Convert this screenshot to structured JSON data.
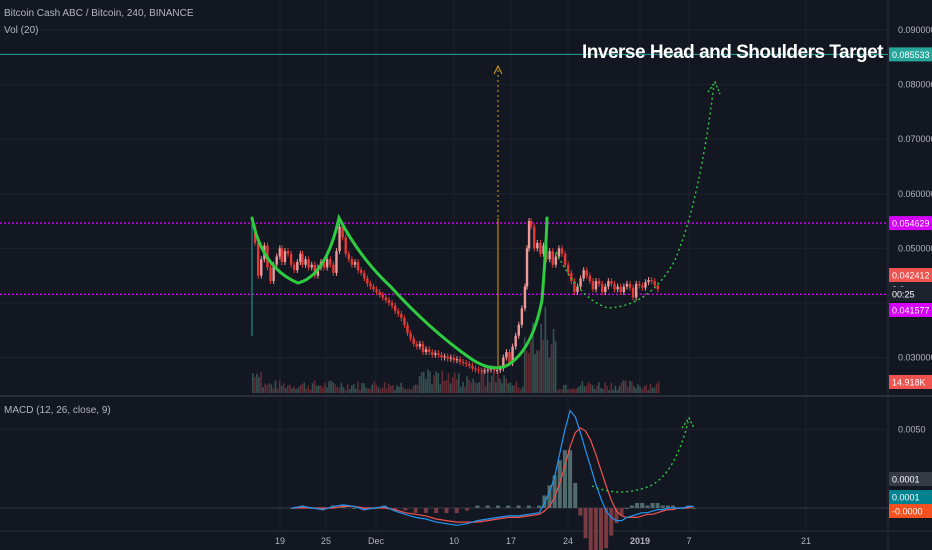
{
  "header": {
    "symbol": "Bitcoin Cash ABC / Bitcoin, 240, BINANCE",
    "volume": "Vol (20)",
    "macd": "MACD (12, 26, close, 9)"
  },
  "annotation": {
    "title": "Inverse Head and Shoulders Target"
  },
  "colors": {
    "background": "#131722",
    "grid": "#1e222d",
    "up": "#ef9a9a",
    "down": "#e53935",
    "pattern": "#2ecc40",
    "projection": "#2ecc40",
    "level": "#d500f9",
    "target": "#26a69a",
    "macd": "#2196f3",
    "signal": "#ef5350"
  },
  "chart_data": [
    {
      "type": "line",
      "name": "price",
      "xaxis": {
        "labels": [
          "19",
          "25",
          "Dec",
          "10",
          "17",
          "24",
          "2019",
          "7",
          "21"
        ]
      },
      "yaxis": {
        "range": [
          0.0235,
          0.0955
        ],
        "ticks": [
          "0.090000",
          "0.080000",
          "0.070000",
          "0.060000",
          "0.050000",
          "0.030000"
        ]
      },
      "price_labels": {
        "target": "0.085533",
        "resistance": "0.054629",
        "current": "0.042412",
        "countdown": "00:25",
        "support": "0.041577",
        "partial": "0.0",
        "volume": "14.918K"
      },
      "levels": {
        "target": 0.085533,
        "resistance": 0.054629,
        "support": 0.041577
      },
      "price": [
        [
          0,
          0.054
        ],
        [
          3,
          0.051
        ],
        [
          6,
          0.045
        ],
        [
          9,
          0.048
        ],
        [
          12,
          0.0505
        ],
        [
          15,
          0.0465
        ],
        [
          18,
          0.044
        ],
        [
          21,
          0.047
        ],
        [
          24,
          0.0485
        ],
        [
          27,
          0.05
        ],
        [
          29,
          0.0475
        ],
        [
          32,
          0.0495
        ],
        [
          35,
          0.049
        ],
        [
          38,
          0.047
        ],
        [
          41,
          0.046
        ],
        [
          44,
          0.0475
        ],
        [
          47,
          0.049
        ],
        [
          49,
          0.047
        ],
        [
          52,
          0.048
        ],
        [
          55,
          0.0465
        ],
        [
          58,
          0.047
        ],
        [
          61,
          0.045
        ],
        [
          64,
          0.0465
        ],
        [
          67,
          0.0475
        ],
        [
          70,
          0.0465
        ],
        [
          73,
          0.048
        ],
        [
          76,
          0.047
        ],
        [
          79,
          0.0455
        ],
        [
          82,
          0.0495
        ],
        [
          85,
          0.054
        ],
        [
          88,
          0.052
        ],
        [
          91,
          0.049
        ],
        [
          94,
          0.048
        ],
        [
          97,
          0.047
        ],
        [
          100,
          0.0475
        ],
        [
          103,
          0.046
        ],
        [
          106,
          0.0455
        ],
        [
          109,
          0.0445
        ],
        [
          112,
          0.0435
        ],
        [
          115,
          0.043
        ],
        [
          118,
          0.0425
        ],
        [
          121,
          0.042
        ],
        [
          124,
          0.0415
        ],
        [
          127,
          0.041
        ],
        [
          130,
          0.0405
        ],
        [
          133,
          0.04
        ],
        [
          136,
          0.0395
        ],
        [
          139,
          0.0385
        ],
        [
          142,
          0.038
        ],
        [
          145,
          0.0372
        ],
        [
          148,
          0.036
        ],
        [
          151,
          0.0345
        ],
        [
          154,
          0.0335
        ],
        [
          157,
          0.0325
        ],
        [
          160,
          0.032
        ],
        [
          163,
          0.0325
        ],
        [
          166,
          0.031
        ],
        [
          169,
          0.0315
        ],
        [
          172,
          0.031
        ],
        [
          175,
          0.0305
        ],
        [
          178,
          0.0308
        ],
        [
          181,
          0.0305
        ],
        [
          184,
          0.03
        ],
        [
          187,
          0.0302
        ],
        [
          190,
          0.0298
        ],
        [
          193,
          0.03
        ],
        [
          196,
          0.0295
        ],
        [
          199,
          0.0297
        ],
        [
          202,
          0.0292
        ],
        [
          205,
          0.029
        ],
        [
          208,
          0.0288
        ],
        [
          211,
          0.0285
        ],
        [
          214,
          0.028
        ],
        [
          217,
          0.0278
        ],
        [
          220,
          0.0276
        ],
        [
          223,
          0.0275
        ],
        [
          226,
          0.0276
        ],
        [
          229,
          0.0278
        ],
        [
          232,
          0.028
        ],
        [
          235,
          0.0276
        ],
        [
          238,
          0.0277
        ],
        [
          241,
          0.028
        ],
        [
          244,
          0.03
        ],
        [
          247,
          0.031
        ],
        [
          250,
          0.029
        ],
        [
          253,
          0.032
        ],
        [
          256,
          0.034
        ],
        [
          259,
          0.036
        ],
        [
          262,
          0.039
        ],
        [
          265,
          0.043
        ],
        [
          267,
          0.05
        ],
        [
          269,
          0.055
        ],
        [
          271,
          0.054
        ],
        [
          274,
          0.05
        ],
        [
          277,
          0.051
        ],
        [
          280,
          0.049
        ],
        [
          283,
          0.0505
        ],
        [
          286,
          0.048
        ],
        [
          289,
          0.0495
        ],
        [
          292,
          0.047
        ],
        [
          295,
          0.0485
        ],
        [
          298,
          0.05
        ],
        [
          301,
          0.049
        ],
        [
          304,
          0.047
        ],
        [
          307,
          0.0455
        ],
        [
          310,
          0.044
        ],
        [
          313,
          0.042
        ],
        [
          316,
          0.043
        ],
        [
          319,
          0.0445
        ],
        [
          322,
          0.046
        ],
        [
          325,
          0.045
        ],
        [
          328,
          0.044
        ],
        [
          331,
          0.0425
        ],
        [
          334,
          0.044
        ],
        [
          337,
          0.0435
        ],
        [
          340,
          0.042
        ],
        [
          343,
          0.043
        ],
        [
          346,
          0.044
        ],
        [
          349,
          0.0435
        ],
        [
          352,
          0.0425
        ],
        [
          355,
          0.043
        ],
        [
          358,
          0.042
        ],
        [
          361,
          0.043
        ],
        [
          364,
          0.0435
        ],
        [
          367,
          0.0428
        ],
        [
          370,
          0.041
        ],
        [
          373,
          0.0435
        ],
        [
          376,
          0.0432
        ],
        [
          379,
          0.0428
        ],
        [
          382,
          0.0438
        ],
        [
          385,
          0.0442
        ],
        [
          388,
          0.044
        ],
        [
          391,
          0.0432
        ],
        [
          394,
          0.0425
        ]
      ]
    },
    {
      "type": "bar",
      "name": "volume",
      "label": "Vol (20)",
      "value_label": "14.918K"
    },
    {
      "type": "line",
      "name": "macd",
      "label": "MACD (12, 26, close, 9)",
      "yaxis": {
        "range": [
          -0.0014,
          0.007
        ],
        "ticks": [
          "0.0050"
        ]
      },
      "value_labels": [
        "0.0001",
        "0.0001",
        "-0.0000"
      ],
      "macd": [
        [
          0,
          0.0
        ],
        [
          10,
          0.0001
        ],
        [
          20,
          0.0
        ],
        [
          30,
          -0.0001
        ],
        [
          40,
          0.0001
        ],
        [
          50,
          0.0002
        ],
        [
          60,
          0.0001
        ],
        [
          70,
          -0.0001
        ],
        [
          80,
          0.0
        ],
        [
          90,
          0.0001
        ],
        [
          100,
          -0.0002
        ],
        [
          110,
          -0.0004
        ],
        [
          120,
          -0.0006
        ],
        [
          130,
          -0.0007
        ],
        [
          140,
          -0.0009
        ],
        [
          150,
          -0.001
        ],
        [
          160,
          -0.0011
        ],
        [
          170,
          -0.001
        ],
        [
          180,
          -0.0008
        ],
        [
          190,
          -0.0007
        ],
        [
          200,
          -0.0006
        ],
        [
          210,
          -0.0005
        ],
        [
          220,
          -0.0005
        ],
        [
          230,
          -0.0004
        ],
        [
          240,
          -0.0003
        ],
        [
          245,
          0.0003
        ],
        [
          250,
          0.001
        ],
        [
          255,
          0.002
        ],
        [
          260,
          0.0035
        ],
        [
          265,
          0.005
        ],
        [
          270,
          0.0062
        ],
        [
          275,
          0.0058
        ],
        [
          280,
          0.0048
        ],
        [
          285,
          0.0037
        ],
        [
          290,
          0.0026
        ],
        [
          295,
          0.0015
        ],
        [
          300,
          0.0006
        ],
        [
          305,
          -0.0002
        ],
        [
          310,
          -0.0006
        ],
        [
          315,
          -0.0008
        ],
        [
          320,
          -0.0008
        ],
        [
          325,
          -0.0006
        ],
        [
          330,
          -0.0005
        ],
        [
          335,
          -0.0004
        ],
        [
          340,
          -0.0003
        ],
        [
          345,
          -0.0003
        ],
        [
          350,
          -0.0002
        ],
        [
          355,
          -0.0001
        ],
        [
          360,
          -0.0001
        ],
        [
          365,
          0.0
        ],
        [
          370,
          0.0
        ],
        [
          375,
          0.0
        ],
        [
          380,
          0.0
        ],
        [
          385,
          0.0001
        ],
        [
          390,
          0.0001
        ]
      ],
      "signal": [
        [
          0,
          0.0
        ],
        [
          10,
          0.0
        ],
        [
          20,
          0.0
        ],
        [
          30,
          0.0
        ],
        [
          40,
          0.0
        ],
        [
          50,
          0.0001
        ],
        [
          60,
          0.0001
        ],
        [
          70,
          0.0
        ],
        [
          80,
          0.0
        ],
        [
          90,
          0.0
        ],
        [
          100,
          -0.0001
        ],
        [
          110,
          -0.0003
        ],
        [
          120,
          -0.0004
        ],
        [
          130,
          -0.0005
        ],
        [
          140,
          -0.0007
        ],
        [
          150,
          -0.0008
        ],
        [
          160,
          -0.0009
        ],
        [
          170,
          -0.0009
        ],
        [
          180,
          -0.0009
        ],
        [
          190,
          -0.0008
        ],
        [
          200,
          -0.0007
        ],
        [
          210,
          -0.0006
        ],
        [
          220,
          -0.0006
        ],
        [
          230,
          -0.0005
        ],
        [
          240,
          -0.0004
        ],
        [
          245,
          -0.0002
        ],
        [
          250,
          0.0001
        ],
        [
          255,
          0.0007
        ],
        [
          260,
          0.0016
        ],
        [
          265,
          0.0027
        ],
        [
          270,
          0.0039
        ],
        [
          275,
          0.0048
        ],
        [
          280,
          0.0051
        ],
        [
          285,
          0.0049
        ],
        [
          290,
          0.0043
        ],
        [
          295,
          0.0034
        ],
        [
          300,
          0.0024
        ],
        [
          305,
          0.0014
        ],
        [
          310,
          0.0005
        ],
        [
          315,
          -0.0002
        ],
        [
          320,
          -0.0005
        ],
        [
          325,
          -0.0006
        ],
        [
          330,
          -0.0006
        ],
        [
          335,
          -0.0006
        ],
        [
          340,
          -0.0005
        ],
        [
          345,
          -0.0004
        ],
        [
          350,
          -0.0004
        ],
        [
          355,
          -0.0003
        ],
        [
          360,
          -0.0002
        ],
        [
          365,
          -0.0001
        ],
        [
          370,
          -0.0001
        ],
        [
          375,
          0.0
        ],
        [
          380,
          0.0
        ],
        [
          385,
          0.0
        ],
        [
          390,
          0.0001
        ]
      ]
    }
  ]
}
